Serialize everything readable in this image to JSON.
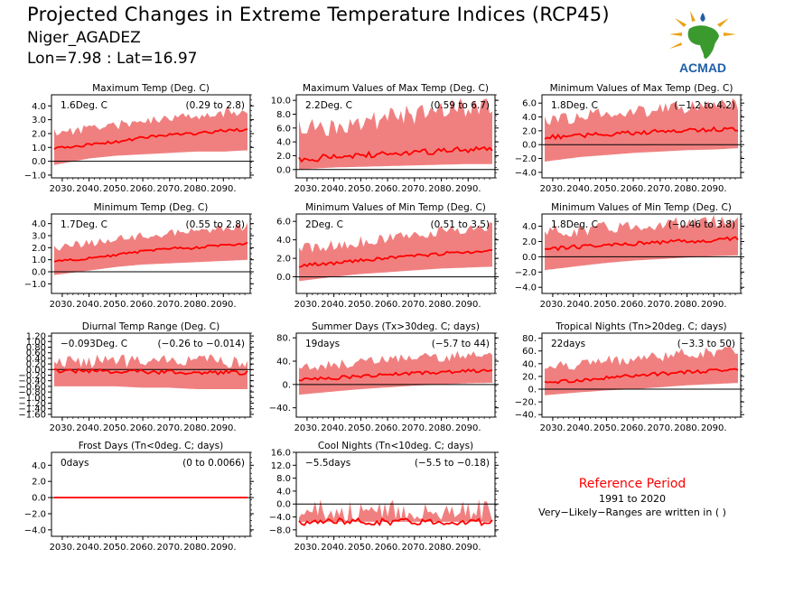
{
  "header": {
    "title": "Projected Changes in Extreme Temperature Indices (RCP45)",
    "location": "Niger_AGADEZ",
    "coords": "Lon=7.98 : Lat=16.97",
    "logo_text": "ACMAD"
  },
  "colors": {
    "band": "#f08080",
    "line": "#ff0000",
    "zero_line": "#000000",
    "logo_blue": "#1f5fa8",
    "logo_green": "#3a9a2e",
    "logo_gold": "#e8a317"
  },
  "reference": {
    "title": "Reference Period",
    "period": "1991 to 2020",
    "note": "Very−Likely−Ranges are written in ( )"
  },
  "chart_data": [
    {
      "id": "p1",
      "type": "area",
      "title": "Maximum Temp (Deg. C)",
      "value_text": "1.6Deg. C",
      "range_text": "(0.29 to 2.8)",
      "x_ticks": [
        "2030.",
        "2040.",
        "2050.",
        "2060.",
        "2070.",
        "2080.",
        "2090."
      ],
      "xlim": [
        2026,
        2100
      ],
      "ylim": [
        -1.2,
        4.8
      ],
      "y_ticks": [
        4.0,
        3.0,
        2.0,
        1.0,
        0.0,
        -1.0
      ],
      "y_tick_labels": [
        "4.0",
        "3.0",
        "2.0",
        "1.0",
        "0.0",
        "−1.0"
      ],
      "series": {
        "x_knots": [
          2026,
          2040,
          2050,
          2060,
          2070,
          2080,
          2090,
          2100
        ],
        "mean": [
          0.9,
          1.2,
          1.4,
          1.7,
          1.9,
          2.0,
          2.2,
          2.3
        ],
        "lower": [
          -0.3,
          0.2,
          0.4,
          0.5,
          0.6,
          0.7,
          0.7,
          0.8
        ],
        "upper": [
          2.0,
          2.4,
          2.6,
          2.9,
          3.2,
          3.3,
          3.5,
          3.6
        ]
      },
      "noise": 0.35
    },
    {
      "id": "p2",
      "type": "area",
      "title": "Maximum Values of Max Temp (Deg. C)",
      "value_text": "2.2Deg. C",
      "range_text": "(0.59 to 6.7)",
      "x_ticks": [
        "2030.",
        "2040.",
        "2050.",
        "2060.",
        "2070.",
        "2080.",
        "2090."
      ],
      "xlim": [
        2026,
        2100
      ],
      "ylim": [
        -1.2,
        10.8
      ],
      "y_ticks": [
        10.0,
        8.0,
        6.0,
        4.0,
        2.0,
        0.0
      ],
      "y_tick_labels": [
        "10.0",
        "8.0",
        "6.0",
        "4.0",
        "2.0",
        "0.0"
      ],
      "series": {
        "x_knots": [
          2026,
          2040,
          2050,
          2060,
          2070,
          2080,
          2090,
          2100
        ],
        "mean": [
          1.5,
          1.8,
          2.0,
          2.3,
          2.5,
          2.7,
          2.8,
          2.9
        ],
        "lower": [
          0.0,
          0.3,
          0.4,
          0.5,
          0.6,
          0.7,
          0.8,
          0.8
        ],
        "upper": [
          6.0,
          6.5,
          7.0,
          7.5,
          8.0,
          8.5,
          9.0,
          9.5
        ]
      },
      "noise": 1.6
    },
    {
      "id": "p3",
      "type": "area",
      "title": "Minimum Values of Max Temp (Deg. C)",
      "value_text": "1.8Deg. C",
      "range_text": "(−1.2 to 4.2)",
      "x_ticks": [
        "2030.",
        "2040.",
        "2050.",
        "2060.",
        "2070.",
        "2080.",
        "2090."
      ],
      "xlim": [
        2026,
        2100
      ],
      "ylim": [
        -4.8,
        7.2
      ],
      "y_ticks": [
        6.0,
        4.0,
        2.0,
        0.0,
        -2.0,
        -4.0
      ],
      "y_tick_labels": [
        "6.0",
        "4.0",
        "2.0",
        "0.0",
        "−2.0",
        "−4.0"
      ],
      "series": {
        "x_knots": [
          2026,
          2040,
          2050,
          2060,
          2070,
          2080,
          2090,
          2100
        ],
        "mean": [
          1.0,
          1.3,
          1.5,
          1.7,
          1.9,
          2.0,
          2.2,
          2.3
        ],
        "lower": [
          -2.5,
          -1.8,
          -1.5,
          -1.2,
          -1.0,
          -0.8,
          -0.7,
          -0.5
        ],
        "upper": [
          3.5,
          4.0,
          4.3,
          4.6,
          5.0,
          5.3,
          5.6,
          6.0
        ]
      },
      "noise": 1.0
    },
    {
      "id": "p4",
      "type": "area",
      "title": "Minimum Temp (Deg. C)",
      "value_text": "1.7Deg. C",
      "range_text": "(0.55 to 2.8)",
      "x_ticks": [
        "2030.",
        "2040.",
        "2050.",
        "2060.",
        "2070.",
        "2080.",
        "2090."
      ],
      "xlim": [
        2026,
        2100
      ],
      "ylim": [
        -1.8,
        4.8
      ],
      "y_ticks": [
        4.0,
        3.0,
        2.0,
        1.0,
        0.0,
        -1.0
      ],
      "y_tick_labels": [
        "4.0",
        "3.0",
        "2.0",
        "1.0",
        "0.0",
        "−1.0"
      ],
      "series": {
        "x_knots": [
          2026,
          2040,
          2050,
          2060,
          2070,
          2080,
          2090,
          2100
        ],
        "mean": [
          0.8,
          1.1,
          1.4,
          1.7,
          1.9,
          2.0,
          2.2,
          2.4
        ],
        "lower": [
          -0.3,
          0.1,
          0.4,
          0.6,
          0.7,
          0.8,
          0.9,
          1.0
        ],
        "upper": [
          2.0,
          2.4,
          2.7,
          3.0,
          3.2,
          3.4,
          3.6,
          3.8
        ]
      },
      "noise": 0.35
    },
    {
      "id": "p5",
      "type": "area",
      "title": "Minimum Values of Min Temp (Deg. C)",
      "value_text": "2Deg. C",
      "range_text": "(0.51 to 3.5)",
      "x_ticks": [
        "2030.",
        "2040.",
        "2050.",
        "2060.",
        "2070.",
        "2080.",
        "2090."
      ],
      "xlim": [
        2026,
        2100
      ],
      "ylim": [
        -1.8,
        6.8
      ],
      "y_ticks": [
        6.0,
        4.0,
        2.0,
        0.0
      ],
      "y_tick_labels": [
        "6.0",
        "4.0",
        "2.0",
        "0.0"
      ],
      "series": {
        "x_knots": [
          2026,
          2040,
          2050,
          2060,
          2070,
          2080,
          2090,
          2100
        ],
        "mean": [
          1.2,
          1.5,
          1.8,
          2.0,
          2.3,
          2.5,
          2.7,
          2.9
        ],
        "lower": [
          -0.5,
          0.0,
          0.3,
          0.5,
          0.7,
          0.9,
          1.0,
          1.1
        ],
        "upper": [
          3.0,
          3.4,
          3.8,
          4.2,
          4.6,
          4.9,
          5.2,
          5.5
        ]
      },
      "noise": 0.6
    },
    {
      "id": "p6",
      "type": "area",
      "title": "Minimum Values of Min Temp (Deg. C)",
      "value_text": "1.8Deg. C",
      "range_text": "(−0.46 to 3.8)",
      "x_ticks": [
        "2030.",
        "2040.",
        "2050.",
        "2060.",
        "2070.",
        "2080.",
        "2090."
      ],
      "xlim": [
        2026,
        2100
      ],
      "ylim": [
        -4.8,
        5.6
      ],
      "y_ticks": [
        4.0,
        2.0,
        0.0,
        -2.0,
        -4.0
      ],
      "y_tick_labels": [
        "4.0",
        "2.0",
        "0.0",
        "−2.0",
        "−4.0"
      ],
      "series": {
        "x_knots": [
          2026,
          2040,
          2050,
          2060,
          2070,
          2080,
          2090,
          2100
        ],
        "mean": [
          1.0,
          1.3,
          1.5,
          1.7,
          1.9,
          2.0,
          2.2,
          2.4
        ],
        "lower": [
          -1.8,
          -1.2,
          -0.8,
          -0.5,
          -0.3,
          -0.1,
          0.1,
          0.2
        ],
        "upper": [
          3.2,
          3.5,
          3.8,
          4.1,
          4.3,
          4.5,
          4.7,
          4.9
        ]
      },
      "noise": 0.9
    },
    {
      "id": "p7",
      "type": "area",
      "title": "Diurnal Temp Range (Deg. C)",
      "value_text": "−0.093Deg. C",
      "range_text": "(−0.26 to −0.014)",
      "x_ticks": [
        "2030.",
        "2040.",
        "2050.",
        "2060.",
        "2070.",
        "2080.",
        "2090."
      ],
      "xlim": [
        2026,
        2100
      ],
      "ylim": [
        -1.7,
        1.3
      ],
      "y_ticks": [
        1.2,
        1.0,
        0.8,
        0.6,
        0.4,
        0.2,
        0.0,
        -0.2,
        -0.4,
        -0.6,
        -0.8,
        -1.0,
        -1.2,
        -1.4,
        -1.6
      ],
      "y_tick_labels": [
        "1.20",
        "1.00",
        "0.80",
        "0.60",
        "0.40",
        "0.20",
        "0.00",
        "−0.20",
        "−0.40",
        "−0.60",
        "−0.80",
        "−1.00",
        "−1.20",
        "−1.40",
        "−1.60"
      ],
      "series": {
        "x_knots": [
          2026,
          2040,
          2050,
          2060,
          2070,
          2080,
          2090,
          2100
        ],
        "mean": [
          -0.05,
          -0.05,
          -0.06,
          -0.08,
          -0.09,
          -0.1,
          -0.1,
          -0.11
        ],
        "lower": [
          -0.6,
          -0.6,
          -0.6,
          -0.65,
          -0.65,
          -0.7,
          -0.7,
          -0.7
        ],
        "upper": [
          0.3,
          0.3,
          0.3,
          0.3,
          0.3,
          0.3,
          0.3,
          0.3
        ]
      },
      "noise": 0.25
    },
    {
      "id": "p8",
      "type": "area",
      "title": "Summer Days (Tx>30deg. C; days)",
      "value_text": "19days",
      "range_text": "(−5.7 to 44)",
      "x_ticks": [
        "2030.",
        "2040.",
        "2050.",
        "2060.",
        "2070.",
        "2080.",
        "2090."
      ],
      "xlim": [
        2026,
        2100
      ],
      "ylim": [
        -56,
        88
      ],
      "y_ticks": [
        80,
        40,
        0,
        -40
      ],
      "y_tick_labels": [
        "80.",
        "40.",
        "0.",
        "−40."
      ],
      "series": {
        "x_knots": [
          2026,
          2040,
          2050,
          2060,
          2070,
          2080,
          2090,
          2100
        ],
        "mean": [
          8,
          11,
          14,
          17,
          19,
          21,
          23,
          24
        ],
        "lower": [
          -18,
          -12,
          -8,
          -5,
          -2,
          0,
          2,
          3
        ],
        "upper": [
          30,
          35,
          38,
          42,
          45,
          48,
          50,
          52
        ]
      },
      "noise": 9
    },
    {
      "id": "p9",
      "type": "area",
      "title": "Tropical Nights (Tn>20deg. C; days)",
      "value_text": "22days",
      "range_text": "(−3.3 to 50)",
      "x_ticks": [
        "2030.",
        "2040.",
        "2050.",
        "2060.",
        "2070.",
        "2080.",
        "2090."
      ],
      "xlim": [
        2026,
        2100
      ],
      "ylim": [
        -44,
        88
      ],
      "y_ticks": [
        80,
        60,
        40,
        20,
        0,
        -20,
        -40
      ],
      "y_tick_labels": [
        "80.",
        "60.",
        "40.",
        "20.",
        "0.",
        "−20.",
        "−40."
      ],
      "series": {
        "x_knots": [
          2026,
          2040,
          2050,
          2060,
          2070,
          2080,
          2090,
          2100
        ],
        "mean": [
          10,
          14,
          18,
          21,
          24,
          27,
          29,
          31
        ],
        "lower": [
          -10,
          -5,
          -2,
          0,
          3,
          6,
          8,
          10
        ],
        "upper": [
          35,
          40,
          44,
          48,
          52,
          56,
          58,
          60
        ]
      },
      "noise": 9
    },
    {
      "id": "p10",
      "type": "area",
      "title": "Frost Days (Tn<0deg. C; days)",
      "value_text": "0days",
      "range_text": "(0 to 0.0066)",
      "x_ticks": [
        "2030.",
        "2040.",
        "2050.",
        "2060.",
        "2070.",
        "2080.",
        "2090."
      ],
      "xlim": [
        2026,
        2100
      ],
      "ylim": [
        -4.8,
        5.6
      ],
      "y_ticks": [
        4.0,
        2.0,
        0.0,
        -2.0,
        -4.0
      ],
      "y_tick_labels": [
        "4.0",
        "2.0",
        "0.0",
        "−2.0",
        "−4.0"
      ],
      "series": {
        "x_knots": [
          2026,
          2100
        ],
        "mean": [
          0,
          0
        ],
        "lower": [
          0,
          0
        ],
        "upper": [
          0.1,
          0.1
        ]
      },
      "noise": 0
    },
    {
      "id": "p11",
      "type": "area",
      "title": "Cool Nights (Tn<10deg. C; days)",
      "value_text": "−5.5days",
      "range_text": "(−5.5 to −0.18)",
      "x_ticks": [
        "2030.",
        "2040.",
        "2050.",
        "2060.",
        "2070.",
        "2080.",
        "2090."
      ],
      "xlim": [
        2026,
        2100
      ],
      "ylim": [
        -10,
        16
      ],
      "y_ticks": [
        16,
        12,
        8,
        4,
        0,
        -4,
        -8
      ],
      "y_tick_labels": [
        "16.0",
        "12.0",
        "8.0",
        "4.0",
        "0.0",
        "−4.0",
        "−8.0"
      ],
      "series": {
        "x_knots": [
          2026,
          2100
        ],
        "mean": [
          -5.5,
          -5.5
        ],
        "lower": [
          -5.5,
          -5.5
        ],
        "upper": [
          -2.0,
          -2.0
        ]
      },
      "noise": 3.5
    }
  ]
}
